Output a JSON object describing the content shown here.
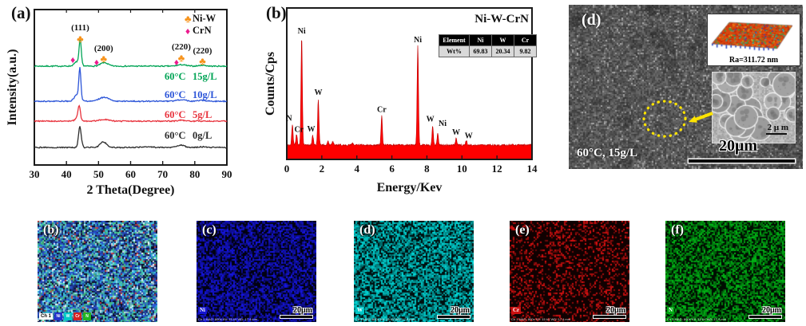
{
  "panels": {
    "a": {
      "label": "(a)"
    },
    "b": {
      "label": "(b)"
    },
    "d": {
      "label": "(d)",
      "condition": "60°C, 15g/L",
      "roughness": "Ra=311.72 nm",
      "inset_scale": "2 μ m",
      "scale_bar": "20μm"
    }
  },
  "maps": [
    {
      "label": "(b)",
      "type": "composite",
      "channel": "Ch 1",
      "elements": [
        {
          "name": "Ni",
          "color": "#2233cc"
        },
        {
          "name": "W",
          "color": "#00c8c8"
        },
        {
          "name": "Cr",
          "color": "#d42222"
        },
        {
          "name": "N",
          "color": "#22b422"
        }
      ]
    },
    {
      "label": "(c)",
      "element": "Ni",
      "color": "#1414d2",
      "density": 0.62,
      "scale_bar": "20μm",
      "meta": "Ch 1   MAG: 800x   HV: 15 kV   WD: 17.4 mm"
    },
    {
      "label": "(d)",
      "element": "W",
      "color": "#00c8c8",
      "density": 0.68,
      "scale_bar": "20μm",
      "meta": "Ch 1   MAG: 800x   HV: 15 kV   WD: 17.4 mm"
    },
    {
      "label": "(e)",
      "element": "Cr",
      "color": "#cc1010",
      "density": 0.3,
      "scale_bar": "20μm",
      "meta": "Ch 1   MAG: 800x   HV: 15 kV   WD: 17.4 mm"
    },
    {
      "label": "(f)",
      "element": "N",
      "color": "#00aa14",
      "density": 0.62,
      "scale_bar": "20μm",
      "meta": "Ch 1   MAG: 800x   HV: 15 kV   WD: 17.4 mm"
    }
  ],
  "chart_data": [
    {
      "id": "xrd",
      "type": "line",
      "title": "",
      "xlabel": "2 Theta(Degree)",
      "ylabel": "Intensity(a.u.)",
      "xlim": [
        30,
        90
      ],
      "xticks": [
        30,
        40,
        50,
        60,
        70,
        80,
        90
      ],
      "legend": [
        {
          "label": "Ni-W",
          "symbol": "club",
          "color": "#F7941D"
        },
        {
          "label": "CrN",
          "symbol": "diamond",
          "color": "#EC1A8E"
        }
      ],
      "peak_labels": [
        {
          "text": "(111)",
          "x": 44.3,
          "y": 38
        },
        {
          "text": "(200)",
          "x": 51.6,
          "y": 64
        },
        {
          "text": "(220)",
          "x": 75.8,
          "y": 62
        },
        {
          "text": "(220)",
          "x": 82.4,
          "y": 67
        }
      ],
      "niw_markers": [
        [
          44.3,
          48
        ],
        [
          51.6,
          73
        ],
        [
          75.8,
          72
        ],
        [
          82.4,
          76
        ]
      ],
      "crn_markers": [
        [
          42.0,
          75
        ],
        [
          49.4,
          78
        ],
        [
          74.3,
          78
        ]
      ],
      "series": [
        {
          "name": "60°C 15g/L",
          "color": "#00A455",
          "baseline": 83,
          "label_y": 100,
          "peaks": [
            {
              "x": 44.3,
              "h": 30,
              "w": 0.45
            },
            {
              "x": 43.5,
              "h": 6,
              "w": 1.3
            },
            {
              "x": 51.8,
              "h": 4.5,
              "w": 1.6
            },
            {
              "x": 75.9,
              "h": 1.8,
              "w": 1.8
            },
            {
              "x": 82.4,
              "h": 1.2,
              "w": 1.5
            }
          ]
        },
        {
          "name": "60°C 10g/L",
          "color": "#2B54D8",
          "baseline": 127,
          "label_y": 123,
          "peaks": [
            {
              "x": 44.2,
              "h": 38,
              "w": 0.45
            },
            {
              "x": 43.3,
              "h": 8,
              "w": 1.2
            },
            {
              "x": 51.8,
              "h": 5,
              "w": 2.2
            },
            {
              "x": 75.8,
              "h": 2,
              "w": 2.0
            },
            {
              "x": 82.3,
              "h": 1.2,
              "w": 1.5
            }
          ]
        },
        {
          "name": "60°C 5g/L",
          "color": "#E8323C",
          "baseline": 152,
          "label_y": 148,
          "peaks": [
            {
              "x": 44.0,
              "h": 17,
              "w": 0.5
            },
            {
              "x": 43.4,
              "h": 4,
              "w": 1.0
            },
            {
              "x": 51.6,
              "h": 2.2,
              "w": 2.0
            },
            {
              "x": 75.8,
              "h": 1.2,
              "w": 1.5
            }
          ]
        },
        {
          "name": "60°C 0g/L",
          "color": "#2B2B2B",
          "baseline": 185,
          "label_y": 174,
          "peaks": [
            {
              "x": 44.2,
              "h": 26,
              "w": 0.6
            },
            {
              "x": 51.5,
              "h": 7,
              "w": 1.4
            },
            {
              "x": 65.0,
              "h": 1,
              "w": 2.0
            },
            {
              "x": 75.7,
              "h": 3.2,
              "w": 1.5
            },
            {
              "x": 82.3,
              "h": 0.8,
              "w": 1.5
            }
          ]
        }
      ]
    },
    {
      "id": "eds",
      "type": "area",
      "title": "Ni-W-CrN",
      "xlabel": "Energy/Kev",
      "ylabel": "Counts/Cps",
      "xlim": [
        0,
        14
      ],
      "xticks": [
        0,
        2,
        4,
        6,
        8,
        10,
        12,
        14
      ],
      "fill_color": "#FE0000",
      "peaks": [
        {
          "element": "N",
          "x": 0.32,
          "h": 0.19,
          "dx": -4,
          "dy": 0
        },
        {
          "element": "Cr",
          "x": 0.56,
          "h": 0.1,
          "dx": 3,
          "dy": 2
        },
        {
          "element": "Ni",
          "x": 0.85,
          "h": 1.0,
          "dx": 0,
          "dy": 0
        },
        {
          "element": "W",
          "x": 1.48,
          "h": 0.09,
          "dx": -2,
          "dy": 0
        },
        {
          "element": "W",
          "x": 1.8,
          "h": 0.43,
          "dx": 0,
          "dy": 0
        },
        {
          "element": "",
          "x": 2.35,
          "h": 0.035
        },
        {
          "element": "",
          "x": 2.62,
          "h": 0.03
        },
        {
          "element": "",
          "x": 3.75,
          "h": 0.02
        },
        {
          "element": "Cr",
          "x": 5.42,
          "h": 0.27,
          "dx": 0,
          "dy": 0
        },
        {
          "element": "Ni",
          "x": 7.48,
          "h": 0.92,
          "dx": 0,
          "dy": 0
        },
        {
          "element": "W",
          "x": 8.33,
          "h": 0.18,
          "dx": -3,
          "dy": 0
        },
        {
          "element": "Ni",
          "x": 8.62,
          "h": 0.11,
          "dx": 6,
          "dy": -4
        },
        {
          "element": "W",
          "x": 9.67,
          "h": 0.06,
          "dx": 0,
          "dy": 0
        },
        {
          "element": "W",
          "x": 10.25,
          "h": 0.04,
          "dx": 3,
          "dy": 2
        }
      ],
      "table": {
        "headers": [
          "Element",
          "Ni",
          "W",
          "Cr"
        ],
        "rows": [
          [
            "Wt%",
            "69.83",
            "20.34",
            "9.82"
          ]
        ]
      }
    }
  ]
}
